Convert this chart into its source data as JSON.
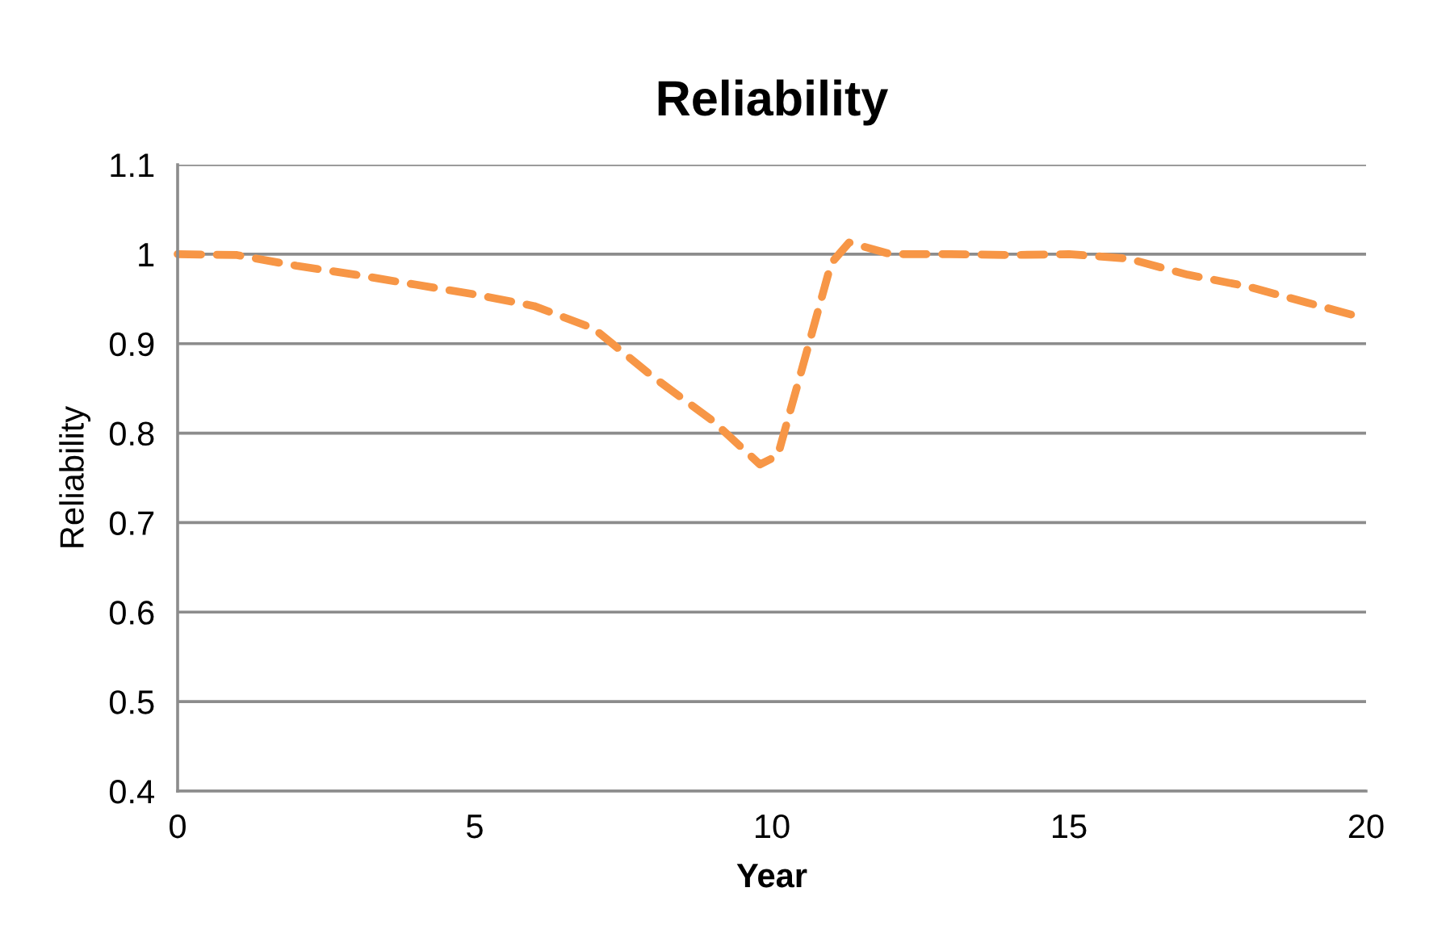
{
  "chart_data": {
    "type": "line",
    "title": "Reliability",
    "xlabel": "Year",
    "ylabel": "Reliability",
    "series": [
      {
        "color": "#f79646",
        "x": [
          0,
          1,
          2,
          3,
          4,
          5,
          6,
          7,
          8,
          9,
          9.8,
          10.1,
          10.5,
          11,
          11.3,
          12,
          13,
          14,
          15,
          16,
          17,
          18,
          19,
          20
        ],
        "values": [
          1.0,
          0.999,
          0.987,
          0.977,
          0.966,
          0.955,
          0.942,
          0.917,
          0.863,
          0.814,
          0.765,
          0.775,
          0.87,
          0.99,
          1.013,
          1.0,
          1.0,
          0.999,
          1.0,
          0.995,
          0.977,
          0.964,
          0.946,
          0.928
        ]
      }
    ],
    "xlim": [
      0,
      20
    ],
    "xticks": [
      0,
      5,
      10,
      15,
      20
    ],
    "ylim": [
      0.4,
      1.1
    ],
    "yticks": [
      0.4,
      0.5,
      0.6,
      0.7,
      0.8,
      0.9,
      1,
      1.1
    ],
    "grid": "y",
    "line_style": "dashed",
    "marker": "none"
  }
}
